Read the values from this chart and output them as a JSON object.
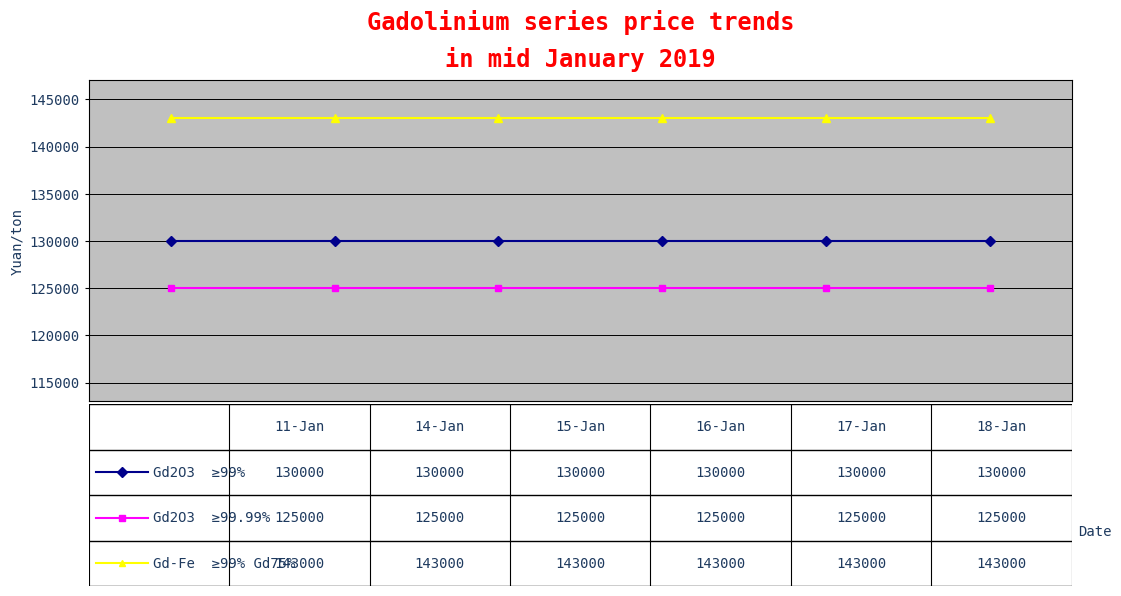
{
  "title": "Gadolinium series price trends\nin mid January 2019",
  "ylabel": "Yuan/ton",
  "xlabel": "Date",
  "dates": [
    "11-Jan",
    "14-Jan",
    "15-Jan",
    "16-Jan",
    "17-Jan",
    "18-Jan"
  ],
  "series": [
    {
      "label": "Gd2O3  ≥99%",
      "values": [
        130000,
        130000,
        130000,
        130000,
        130000,
        130000
      ],
      "color": "#00008B",
      "marker": "D",
      "markersize": 5,
      "linewidth": 1.5
    },
    {
      "label": "Gd2O3  ≥99.99%",
      "values": [
        125000,
        125000,
        125000,
        125000,
        125000,
        125000
      ],
      "color": "#FF00FF",
      "marker": "s",
      "markersize": 5,
      "linewidth": 1.5
    },
    {
      "label": "Gd-Fe  ≥99% Gd75%",
      "values": [
        143000,
        143000,
        143000,
        143000,
        143000,
        143000
      ],
      "color": "#FFFF00",
      "marker": "^",
      "markersize": 6,
      "linewidth": 1.5
    }
  ],
  "ylim": [
    113000,
    147000
  ],
  "yticks": [
    115000,
    120000,
    125000,
    130000,
    135000,
    140000,
    145000
  ],
  "plot_bg_color": "#C0C0C0",
  "fig_bg_color": "#FFFFFF",
  "title_color": "#FF0000",
  "title_fontsize": 17,
  "ylabel_fontsize": 10,
  "tick_fontsize": 10,
  "table_fontsize": 10,
  "table_values": [
    [
      130000,
      130000,
      130000,
      130000,
      130000,
      130000
    ],
    [
      125000,
      125000,
      125000,
      125000,
      125000,
      125000
    ],
    [
      143000,
      143000,
      143000,
      143000,
      143000,
      143000
    ]
  ],
  "table_row_colors": [
    "#00008B",
    "#FF00FF",
    "#FFFF00"
  ],
  "table_marker_styles": [
    "D",
    "s",
    "^"
  ],
  "grid_color": "#000000",
  "grid_linewidth": 0.7
}
